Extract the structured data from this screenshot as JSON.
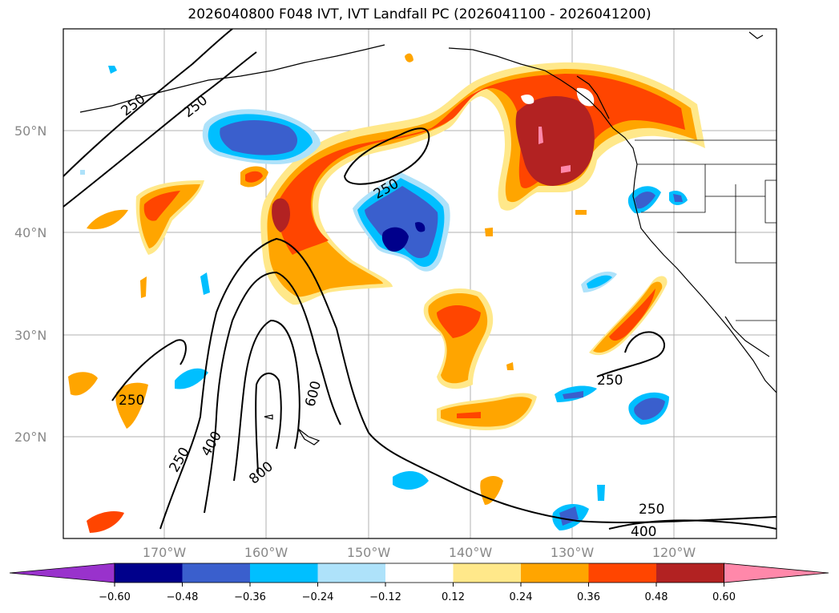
{
  "title": "2026040800 F048 IVT, IVT Landfall PC (2026041100 - 2026041200)",
  "map": {
    "lat_labels": [
      "50°N",
      "40°N",
      "30°N",
      "20°N"
    ],
    "lon_labels": [
      "170°W",
      "160°W",
      "150°W",
      "140°W",
      "130°W",
      "120°W"
    ],
    "ivt_contour_labels": [
      "250",
      "250",
      "250",
      "250",
      "250",
      "400",
      "600",
      "800",
      "250",
      "250",
      "400"
    ]
  },
  "colorbar": {
    "ticks": [
      "−0.60",
      "−0.48",
      "−0.36",
      "−0.24",
      "−0.12",
      "0.12",
      "0.24",
      "0.36",
      "0.48",
      "0.60"
    ],
    "colors": [
      "#9932cc",
      "#00008b",
      "#3a5fcd",
      "#00bfff",
      "#aee2fa",
      "#ffffff",
      "#ffe88a",
      "#ffa500",
      "#ff4500",
      "#b22222",
      "#ff88aa"
    ]
  }
}
